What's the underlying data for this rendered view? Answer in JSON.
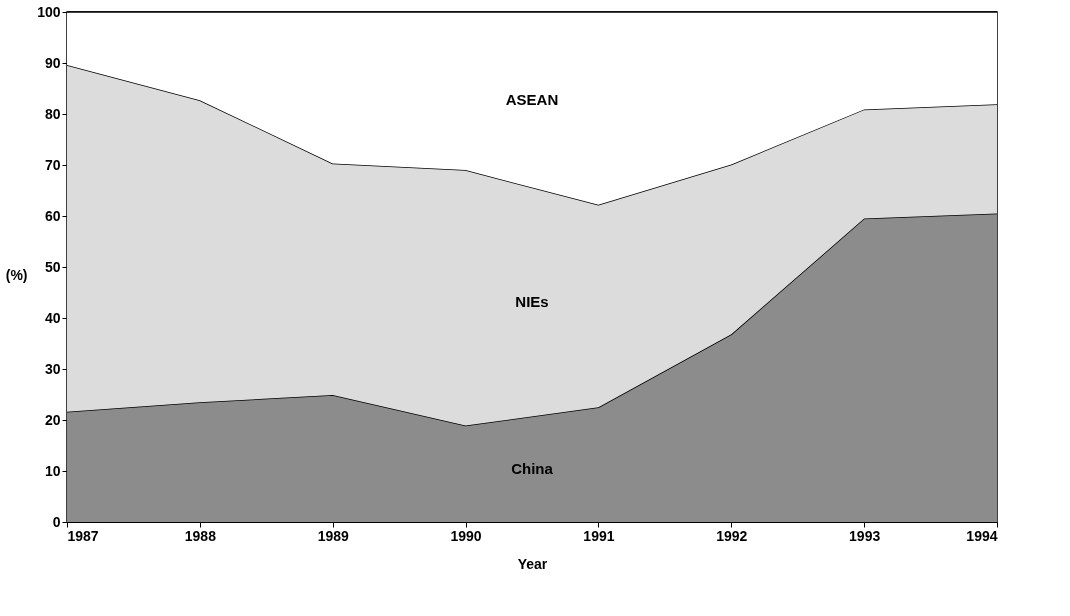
{
  "chart_data": {
    "type": "area",
    "stacked": true,
    "xlabel": "Year",
    "ylabel": "(%)",
    "x": [
      1987,
      1988,
      1989,
      1990,
      1991,
      1992,
      1993,
      1994
    ],
    "xlim": [
      1987,
      1994
    ],
    "xticks": [
      1987,
      1988,
      1989,
      1990,
      1991,
      1992,
      1993,
      1994
    ],
    "ylim": [
      0,
      100
    ],
    "yticks": [
      0,
      10,
      20,
      30,
      40,
      50,
      60,
      70,
      80,
      90,
      100
    ],
    "grid": false,
    "series": [
      {
        "name": "China",
        "color": "#8c8c8c",
        "values": [
          21.6,
          23.5,
          24.9,
          18.9,
          22.5,
          36.8,
          59.5,
          60.5
        ]
      },
      {
        "name": "NIEs",
        "color": "#dcdcdc",
        "values": [
          68,
          59.2,
          45.4,
          50.1,
          39.7,
          33.3,
          21.4,
          21.4
        ]
      },
      {
        "name": "ASEAN",
        "color": "#ffffff",
        "values": [
          10.4,
          17.3,
          29.7,
          31,
          37.8,
          29.9,
          19.1,
          18.1
        ]
      }
    ]
  }
}
